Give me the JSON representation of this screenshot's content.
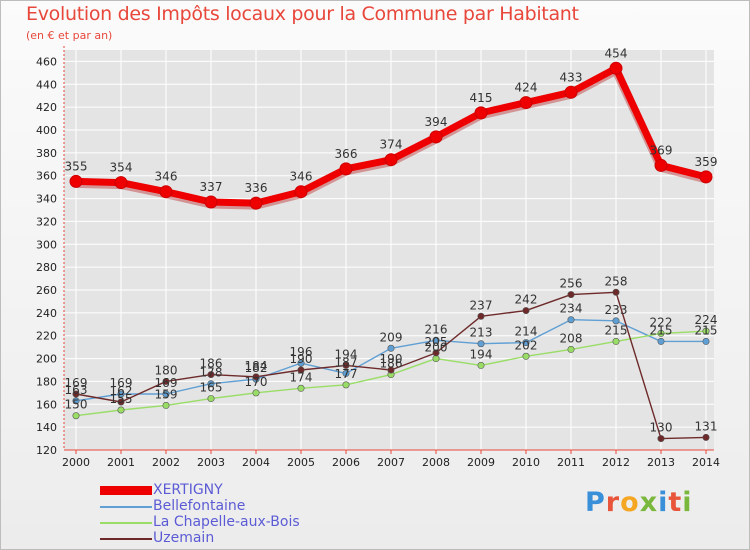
{
  "header": {
    "title": "Evolution des Impôts locaux pour la Commune par Habitant",
    "subtitle": "(en € et par an)"
  },
  "logo": {
    "text": "Proxiti",
    "letter_colors": [
      "#3a8fd9",
      "#e8553a",
      "#f5a623",
      "#7ab83d",
      "#3a8fd9",
      "#e8553a",
      "#7ab83d"
    ]
  },
  "colors": {
    "axis": "#e8473b",
    "grid": "#ffffff",
    "tick_text": "#222222",
    "label_text": "#333333"
  },
  "chart_data": {
    "type": "line",
    "title": "Evolution des Impôts locaux pour la Commune par Habitant",
    "subtitle": "(en € et par an)",
    "xlabel": "",
    "ylabel": "",
    "categories": [
      "2000",
      "2001",
      "2002",
      "2003",
      "2004",
      "2005",
      "2006",
      "2007",
      "2008",
      "2009",
      "2010",
      "2011",
      "2012",
      "2013",
      "2014"
    ],
    "ylim": [
      120,
      470
    ],
    "yticks": [
      120,
      140,
      160,
      180,
      200,
      220,
      240,
      260,
      280,
      300,
      320,
      340,
      360,
      380,
      400,
      420,
      440,
      460
    ],
    "grid": true,
    "legend_position": "bottom-left",
    "series": [
      {
        "name": "XERTIGNY",
        "color": "#ee0000",
        "width": "thick",
        "values": [
          355,
          354,
          346,
          337,
          336,
          346,
          366,
          374,
          394,
          415,
          424,
          433,
          454,
          369,
          359
        ]
      },
      {
        "name": "Bellefontaine",
        "color": "#5f9fd4",
        "width": "thin",
        "values": [
          163,
          169,
          169,
          178,
          182,
          196,
          187,
          209,
          216,
          213,
          214,
          234,
          233,
          215,
          215
        ]
      },
      {
        "name": "La Chapelle-aux-Bois",
        "color": "#99dd66",
        "width": "thin",
        "values": [
          150,
          155,
          159,
          165,
          170,
          174,
          177,
          186,
          200,
          194,
          202,
          208,
          215,
          222,
          224
        ]
      },
      {
        "name": "Uzemain",
        "color": "#6e2a2a",
        "width": "thin",
        "values": [
          169,
          162,
          180,
          186,
          184,
          190,
          194,
          190,
          205,
          237,
          242,
          256,
          258,
          130,
          131
        ]
      }
    ]
  }
}
